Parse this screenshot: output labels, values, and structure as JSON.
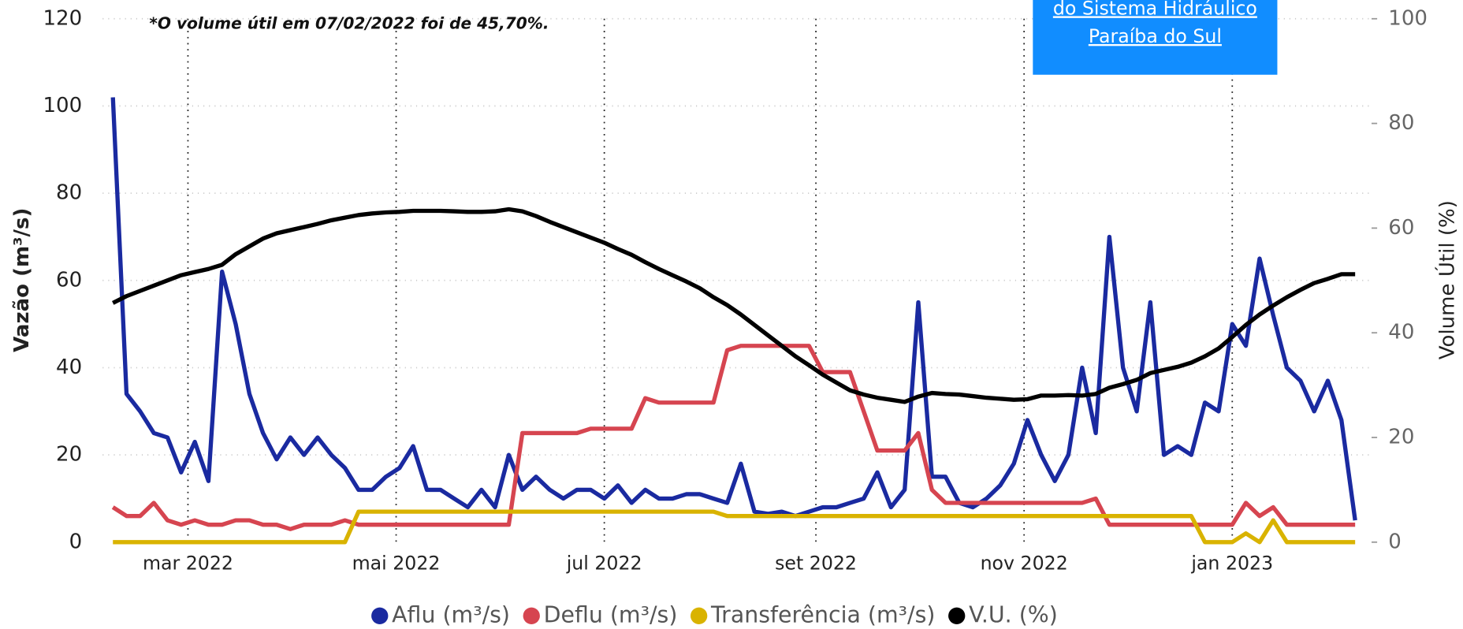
{
  "chart_data": {
    "type": "line",
    "annotation": "*O volume útil em 07/02/2022 foi de 45,70%.",
    "ylabel": "Vazão (m³/s)",
    "y2label": "Volume Útil (%)",
    "xlim": [
      -3,
      368
    ],
    "ylim": [
      0,
      120
    ],
    "y2lim": [
      0,
      100
    ],
    "yticks": [
      0,
      20,
      40,
      60,
      80,
      100,
      120
    ],
    "y2ticks": [
      0,
      20,
      40,
      60,
      80,
      100
    ],
    "xticks": [
      {
        "value": 22,
        "label": "mar 2022"
      },
      {
        "value": 83,
        "label": "mai 2022"
      },
      {
        "value": 144,
        "label": "jul 2022"
      },
      {
        "value": 206,
        "label": "set 2022"
      },
      {
        "value": 267,
        "label": "nov 2022"
      },
      {
        "value": 328,
        "label": "jan 2023"
      }
    ],
    "grid": true,
    "legend": "bottom",
    "x": [
      0,
      4,
      8,
      12,
      16,
      20,
      24,
      28,
      32,
      36,
      40,
      44,
      48,
      52,
      56,
      60,
      64,
      68,
      72,
      76,
      80,
      84,
      88,
      92,
      96,
      100,
      104,
      108,
      112,
      116,
      120,
      124,
      128,
      132,
      136,
      140,
      144,
      148,
      152,
      156,
      160,
      164,
      168,
      172,
      176,
      180,
      184,
      188,
      192,
      196,
      200,
      204,
      208,
      212,
      216,
      220,
      224,
      228,
      232,
      236,
      240,
      244,
      248,
      252,
      256,
      260,
      264,
      268,
      272,
      276,
      280,
      284,
      288,
      292,
      296,
      300,
      304,
      308,
      312,
      316,
      320,
      324,
      328,
      332,
      336,
      340,
      344,
      348,
      352,
      356,
      360,
      364
    ],
    "series": [
      {
        "name": "Aflu (m³/s)",
        "color": "#1a2aa0",
        "values": [
          102,
          34,
          30,
          25,
          24,
          16,
          23,
          14,
          62,
          50,
          34,
          25,
          19,
          24,
          20,
          24,
          20,
          17,
          12,
          12,
          15,
          17,
          22,
          12,
          12,
          10,
          8,
          12,
          8,
          20,
          12,
          15,
          12,
          10,
          12,
          12,
          10,
          13,
          9,
          12,
          10,
          10,
          11,
          11,
          10,
          9,
          18,
          7,
          6.5,
          7,
          6,
          7,
          8,
          8,
          9,
          10,
          16,
          8,
          12,
          55,
          15,
          15,
          9,
          8,
          10,
          13,
          18,
          28,
          20,
          14,
          20,
          40,
          25,
          70,
          40,
          30,
          55,
          20,
          22,
          20,
          32,
          30,
          50,
          45,
          65,
          52,
          40,
          37,
          30,
          37,
          28,
          5
        ]
      },
      {
        "name": "Deflu (m³/s)",
        "color": "#d64550",
        "values": [
          8,
          6,
          6,
          9,
          5,
          4,
          5,
          4,
          4,
          5,
          5,
          4,
          4,
          3,
          4,
          4,
          4,
          5,
          4,
          4,
          4,
          4,
          4,
          4,
          4,
          4,
          4,
          4,
          4,
          4,
          25,
          25,
          25,
          25,
          25,
          26,
          26,
          26,
          26,
          33,
          32,
          32,
          32,
          32,
          32,
          44,
          45,
          45,
          45,
          45,
          45,
          45,
          39,
          39,
          39,
          30,
          21,
          21,
          21,
          25,
          12,
          9,
          9,
          9,
          9,
          9,
          9,
          9,
          9,
          9,
          9,
          9,
          10,
          4,
          4,
          4,
          4,
          4,
          4,
          4,
          4,
          4,
          4,
          9,
          6,
          8,
          4,
          4,
          4,
          4,
          4,
          4
        ]
      },
      {
        "name": "Transferência (m³/s)",
        "color": "#d9b300",
        "values": [
          0,
          0,
          0,
          0,
          0,
          0,
          0,
          0,
          0,
          0,
          0,
          0,
          0,
          0,
          0,
          0,
          0,
          0,
          7,
          7,
          7,
          7,
          7,
          7,
          7,
          7,
          7,
          7,
          7,
          7,
          7,
          7,
          7,
          7,
          7,
          7,
          7,
          7,
          7,
          7,
          7,
          7,
          7,
          7,
          7,
          6,
          6,
          6,
          6,
          6,
          6,
          6,
          6,
          6,
          6,
          6,
          6,
          6,
          6,
          6,
          6,
          6,
          6,
          6,
          6,
          6,
          6,
          6,
          6,
          6,
          6,
          6,
          6,
          6,
          6,
          6,
          6,
          6,
          6,
          6,
          0,
          0,
          0,
          2,
          0,
          5,
          0,
          0,
          0,
          0,
          0,
          0
        ]
      },
      {
        "name": "V.U. (%)",
        "color": "#000000",
        "axis": "y2",
        "values": [
          45.7,
          47,
          48,
          49,
          50,
          51,
          51.6,
          52.2,
          53,
          55,
          56.5,
          58,
          59,
          59.6,
          60.2,
          60.8,
          61.5,
          62,
          62.5,
          62.8,
          63,
          63.1,
          63.3,
          63.3,
          63.3,
          63.2,
          63.1,
          63.1,
          63.2,
          63.6,
          63.2,
          62.3,
          61.2,
          60.2,
          59.2,
          58.2,
          57.2,
          56,
          54.9,
          53.5,
          52.2,
          51,
          49.8,
          48.5,
          46.8,
          45.3,
          43.5,
          41.5,
          39.5,
          37.5,
          35.5,
          33.8,
          32,
          30.5,
          29,
          28.2,
          27.6,
          27.2,
          26.8,
          27.8,
          28.5,
          28.3,
          28.2,
          27.9,
          27.6,
          27.4,
          27.2,
          27.3,
          28,
          28,
          28.1,
          28,
          28.3,
          29.5,
          30.2,
          31,
          32.3,
          32.9,
          33.5,
          34.3,
          35.5,
          37,
          39.2,
          41.5,
          43.5,
          45.2,
          46.8,
          48.2,
          49.5,
          50.3,
          51.2,
          51.2
        ]
      }
    ]
  },
  "button": {
    "lines": [
      "do Sistema Hidráulico",
      "Paraíba do Sul"
    ]
  }
}
